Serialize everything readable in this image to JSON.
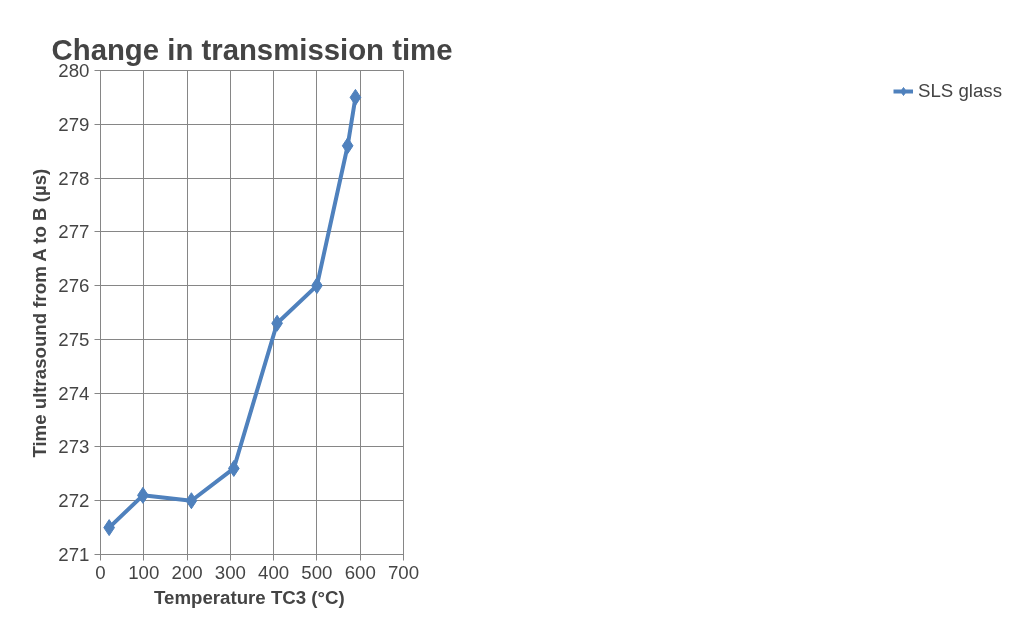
{
  "chart_data": {
    "type": "line",
    "title": "Change in transmission time",
    "xlabel": "Temperature TC3  (°C)",
    "ylabel": "Time ultrasound from A to B (µs)",
    "x": [
      20,
      98,
      210,
      308,
      408,
      500,
      571,
      589
    ],
    "series": [
      {
        "name": "SLS glass",
        "color": "#4f81bd",
        "values": [
          271.5,
          272.1,
          272.0,
          272.6,
          275.3,
          276.0,
          278.6,
          279.5
        ]
      }
    ],
    "xlim": [
      0,
      700
    ],
    "xticks": [
      0,
      100,
      200,
      300,
      400,
      500,
      600,
      700
    ],
    "ylim": [
      271,
      280
    ],
    "yticks": [
      271,
      272,
      273,
      274,
      275,
      276,
      277,
      278,
      279,
      280
    ],
    "grid": true,
    "legend": "right",
    "marker": "diamond",
    "line_style": "solid"
  }
}
